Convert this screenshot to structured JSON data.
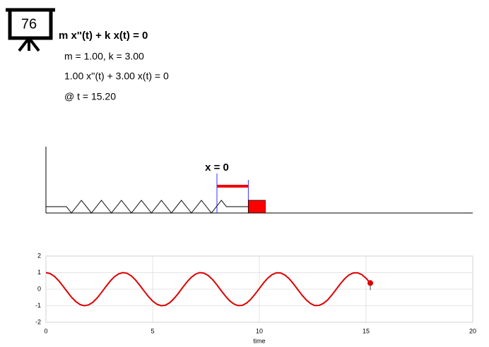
{
  "header": {
    "badge": "76",
    "equation": "m x''(t) + k x(t) = 0",
    "params": "m = 1.00, k = 3.00",
    "equation_numeric": "1.00 x''(t) + 3.00 x(t) = 0",
    "time": "@ t = 15.20"
  },
  "diagram": {
    "origin_label": "x = 0"
  },
  "chart_data": {
    "type": "line",
    "xlabel": "time",
    "xlim": [
      0,
      20
    ],
    "ylim": [
      -2,
      2
    ],
    "xticks": [
      0,
      5,
      10,
      15,
      20
    ],
    "yticks": [
      -2,
      -1,
      0,
      1,
      2
    ],
    "grid": true,
    "x": [
      0,
      0.2,
      0.4,
      0.6,
      0.8,
      1,
      1.2,
      1.4,
      1.6,
      1.8,
      2,
      2.2,
      2.4,
      2.6,
      2.8,
      3,
      3.2,
      3.4,
      3.6,
      3.8,
      4,
      4.2,
      4.4,
      4.6,
      4.8,
      5,
      5.2,
      5.4,
      5.6,
      5.8,
      6,
      6.2,
      6.4,
      6.6,
      6.8,
      7,
      7.2,
      7.4,
      7.6,
      7.8,
      8,
      8.2,
      8.4,
      8.6,
      8.8,
      9,
      9.2,
      9.4,
      9.6,
      9.8,
      10,
      10.2,
      10.4,
      10.6,
      10.8,
      11,
      11.2,
      11.4,
      11.6,
      11.8,
      12,
      12.2,
      12.4,
      12.6,
      12.8,
      13,
      13.2,
      13.4,
      13.6,
      13.8,
      14,
      14.2,
      14.4,
      14.6,
      14.8,
      15,
      15.2
    ],
    "series": [
      {
        "color": "#dd0000",
        "values": [
          1,
          0.94,
          0.77,
          0.51,
          0.18,
          -0.16,
          -0.49,
          -0.75,
          -0.93,
          -1,
          -0.95,
          -0.79,
          -0.53,
          -0.21,
          0.14,
          0.47,
          0.74,
          0.92,
          1,
          0.96,
          0.8,
          0.55,
          0.23,
          -0.11,
          -0.44,
          -0.72,
          -0.91,
          -1,
          -0.97,
          -0.82,
          -0.57,
          -0.26,
          0.09,
          0.42,
          0.7,
          0.9,
          1,
          0.97,
          0.83,
          0.59,
          0.28,
          -0.07,
          -0.4,
          -0.69,
          -0.89,
          -0.99,
          -0.98,
          -0.84,
          -0.61,
          -0.3,
          0.04,
          0.38,
          0.67,
          0.88,
          0.99,
          0.98,
          0.85,
          0.63,
          0.32,
          -0.02,
          -0.36,
          -0.65,
          -0.87,
          -0.99,
          -0.98,
          -0.86,
          -0.65,
          -0.35,
          -0.01,
          0.33,
          0.63,
          0.86,
          0.98,
          0.99,
          0.88,
          0.66,
          0.37
        ]
      }
    ]
  }
}
